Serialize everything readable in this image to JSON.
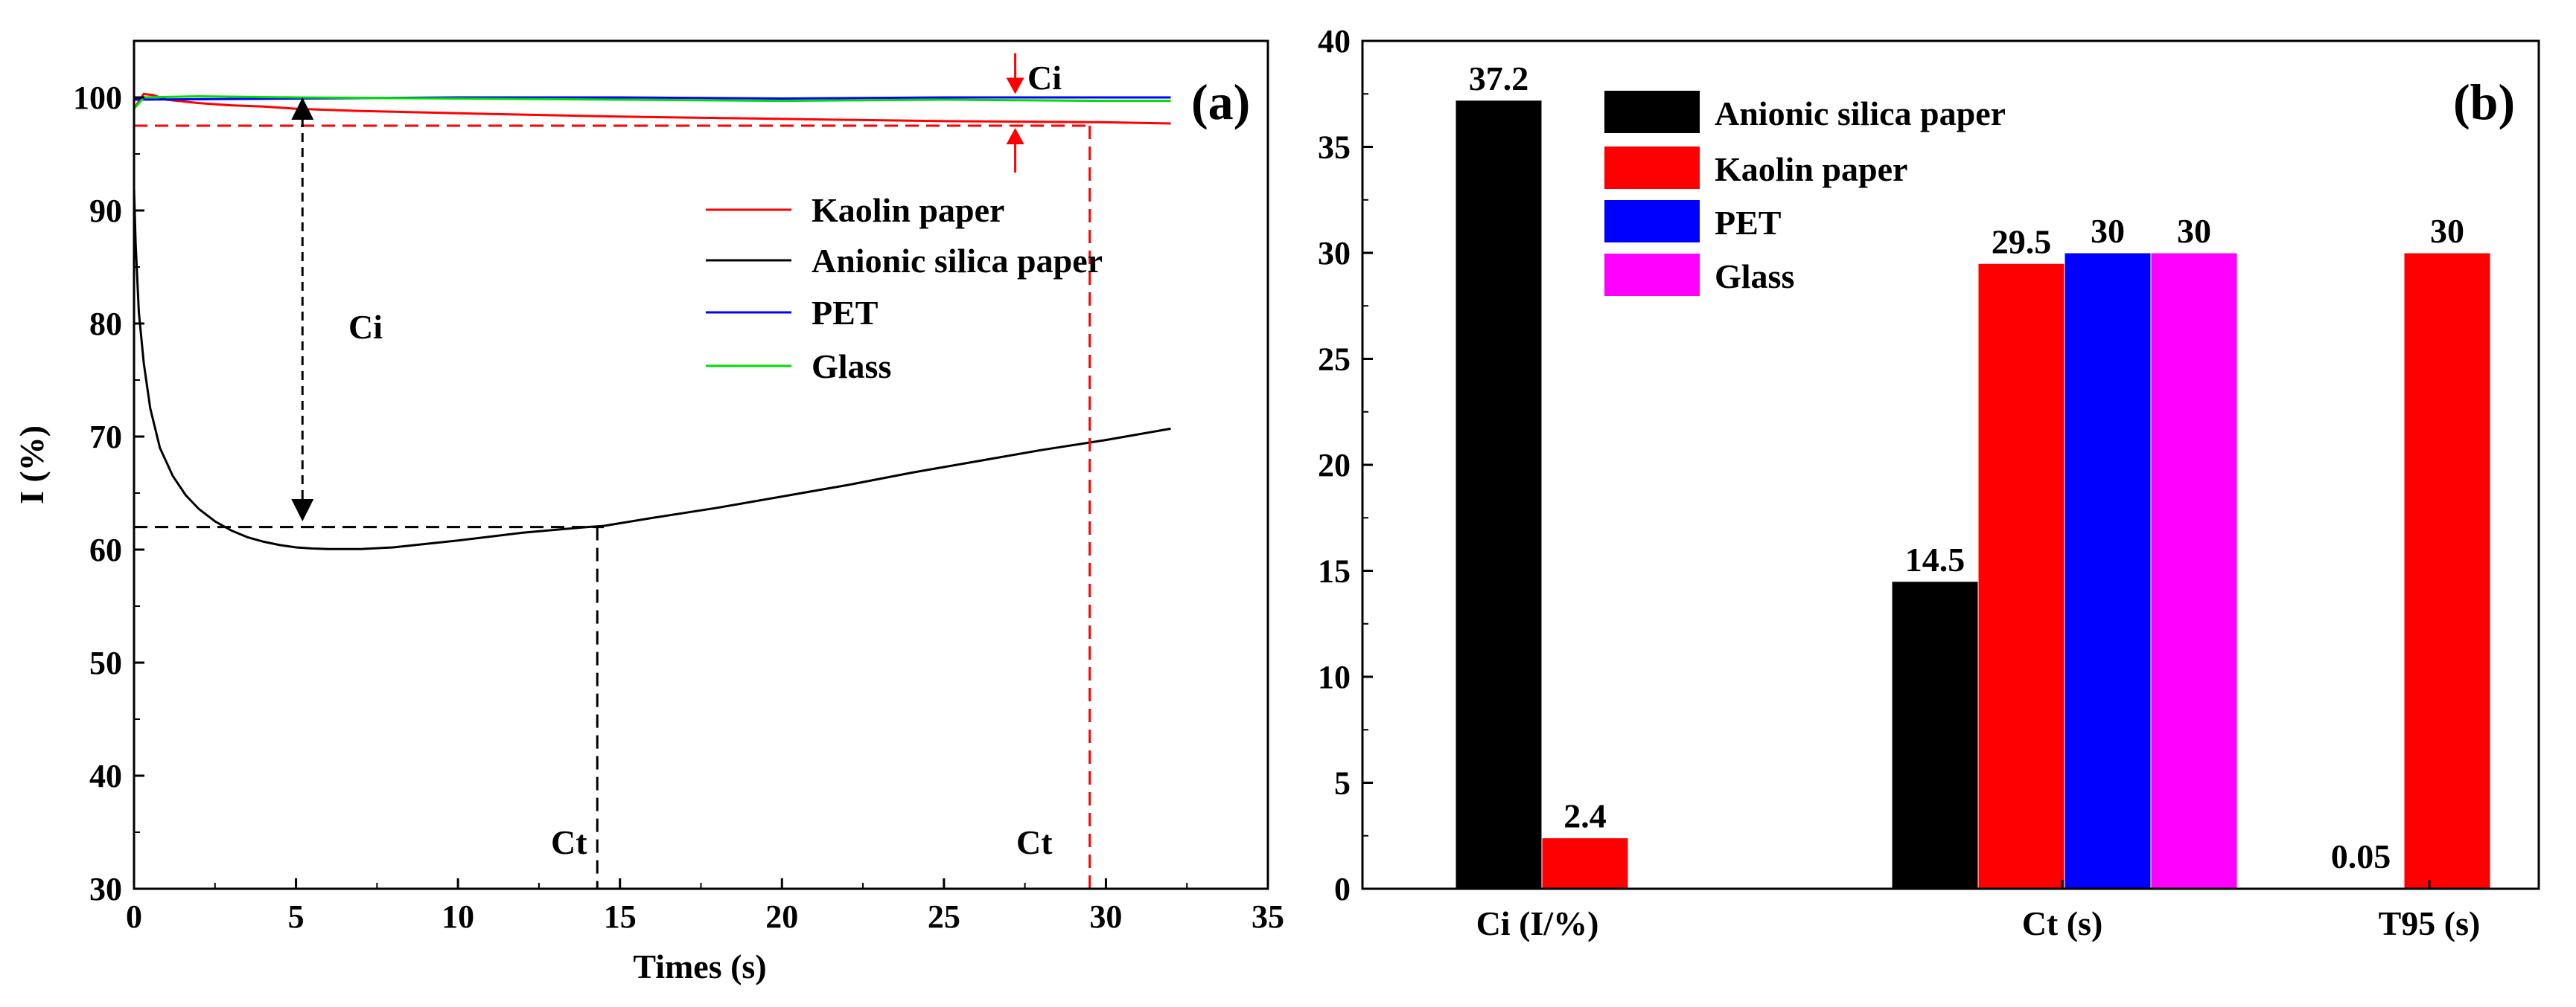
{
  "chart_data": [
    {
      "panel": "(a)",
      "type": "line",
      "title": "",
      "xlabel": "Times (s)",
      "ylabel": "I (%)",
      "xlim": [
        0,
        35
      ],
      "ylim": [
        30,
        105
      ],
      "xticks": [
        0,
        5,
        10,
        15,
        20,
        25,
        30,
        35
      ],
      "yticks": [
        30,
        40,
        50,
        60,
        70,
        80,
        90,
        100
      ],
      "series": [
        {
          "name": "Kaolin paper",
          "color": "#ff0000",
          "x": [
            0,
            0.3,
            0.6,
            1,
            2,
            3,
            4,
            5,
            7,
            10,
            15,
            20,
            25,
            30,
            32
          ],
          "y": [
            99,
            100.3,
            100.2,
            99.8,
            99.5,
            99.3,
            99.2,
            99.0,
            98.8,
            98.6,
            98.3,
            98.1,
            97.9,
            97.8,
            97.7
          ]
        },
        {
          "name": "Anionic silica paper",
          "color": "#000000",
          "x": [
            0,
            0.05,
            0.15,
            0.3,
            0.5,
            0.8,
            1.2,
            1.6,
            2,
            2.5,
            3,
            3.5,
            4,
            4.5,
            5,
            5.5,
            6,
            7,
            8,
            10,
            12,
            14,
            14.5,
            16,
            18,
            20,
            22,
            24,
            26,
            28,
            30,
            32
          ],
          "y": [
            92,
            87,
            81,
            76.5,
            72.5,
            69,
            66.5,
            64.8,
            63.6,
            62.5,
            61.7,
            61.1,
            60.7,
            60.4,
            60.2,
            60.1,
            60.05,
            60.05,
            60.2,
            60.8,
            61.5,
            62.0,
            62.1,
            62.8,
            63.7,
            64.7,
            65.7,
            66.8,
            67.8,
            68.8,
            69.7,
            70.7
          ]
        },
        {
          "name": "PET",
          "color": "#0000ff",
          "x": [
            0,
            5,
            10,
            15,
            20,
            25,
            30,
            32
          ],
          "y": [
            99.8,
            99.9,
            100.0,
            100.0,
            99.9,
            100.0,
            100.0,
            100.0
          ]
        },
        {
          "name": "Glass",
          "color": "#00dd00",
          "x": [
            0,
            0.3,
            2,
            5,
            10,
            15,
            20,
            25,
            30,
            32
          ],
          "y": [
            99.0,
            100.0,
            100.1,
            100.0,
            99.9,
            99.8,
            99.7,
            99.8,
            99.7,
            99.7
          ]
        }
      ],
      "reference_lines": {
        "black_h_y": 62,
        "black_h_x_end": 14.5,
        "black_v_x": 14.3,
        "red_h_y": 97.5,
        "red_h_x_end": 29.5,
        "red_v_x": 29.5
      },
      "annotations": {
        "ci_left": "Ci",
        "ci_left_arrow": {
          "x": 5.2,
          "y_from": 100,
          "y_to": 62.5
        },
        "ci_right": "Ci",
        "ci_right_arrow": {
          "x": 27.2,
          "y_top": 100.3,
          "y_bottom": 97.3
        },
        "ct_black": "Ct",
        "ct_red": "Ct"
      }
    },
    {
      "panel": "(b)",
      "type": "bar",
      "title": "",
      "xlabel": "",
      "ylabel": "",
      "ylim": [
        0,
        40
      ],
      "yticks": [
        0,
        5,
        10,
        15,
        20,
        25,
        30,
        35,
        40
      ],
      "categories": [
        "Ci (I/%)",
        "Ct (s)",
        "T95 (s)"
      ],
      "series": [
        {
          "name": "Anionic silica paper",
          "color": "#000000",
          "values": [
            37.2,
            14.5,
            0.05
          ],
          "labels": [
            "37.2",
            "14.5",
            "0.05"
          ]
        },
        {
          "name": "Kaolin paper",
          "color": "#ff0000",
          "values": [
            2.4,
            29.5,
            30
          ],
          "labels": [
            "2.4",
            "29.5",
            "30"
          ]
        },
        {
          "name": "PET",
          "color": "#0000ff",
          "values": [
            null,
            30,
            null
          ],
          "labels": [
            "",
            "30",
            ""
          ]
        },
        {
          "name": "Glass",
          "color": "#ff00ff",
          "values": [
            null,
            30,
            null
          ],
          "labels": [
            "",
            "30",
            ""
          ]
        }
      ]
    }
  ]
}
